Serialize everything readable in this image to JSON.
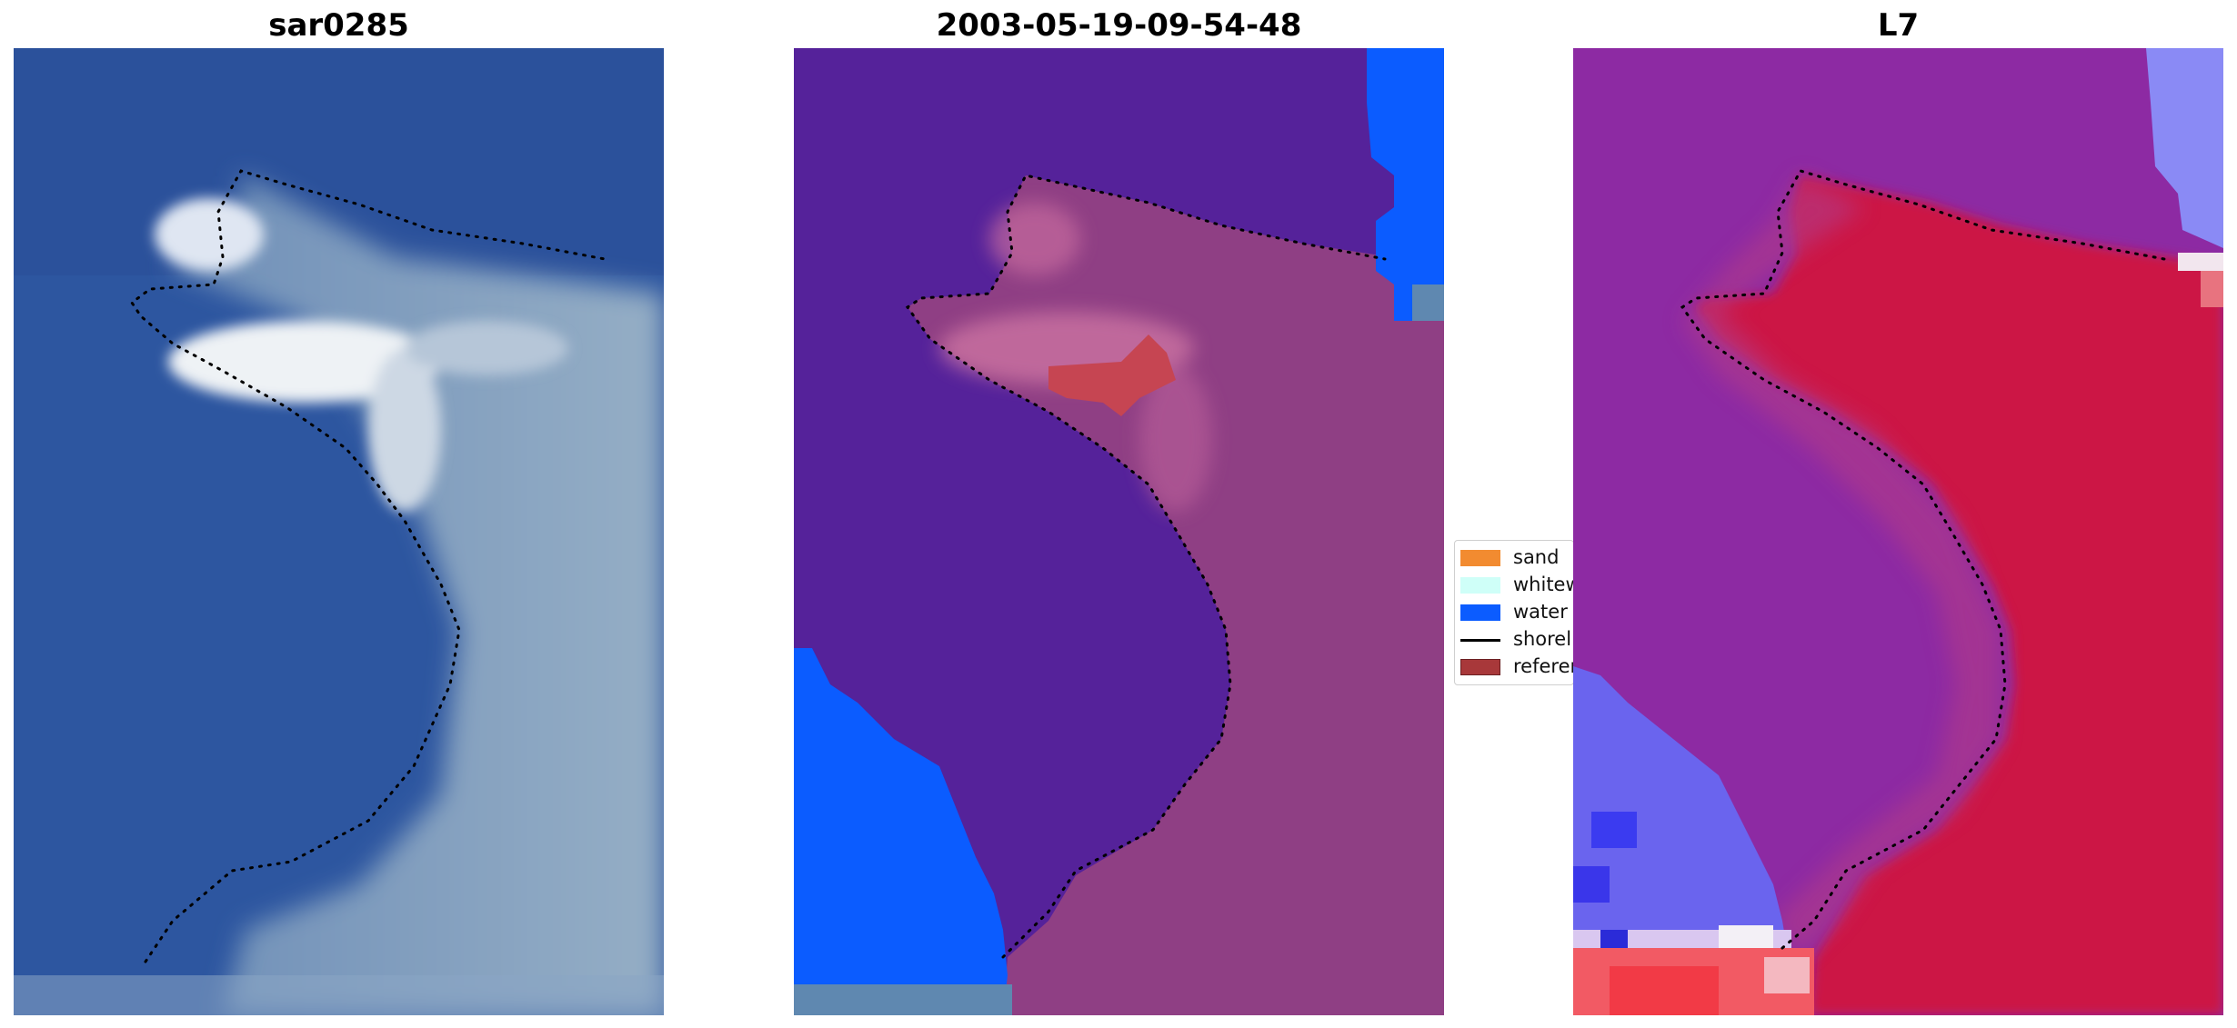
{
  "panels": [
    {
      "title": "sar0285"
    },
    {
      "title": "2003-05-19-09-54-48"
    },
    {
      "title": "L7"
    }
  ],
  "legend": {
    "items": [
      {
        "label": "sand",
        "color": "#f28b30"
      },
      {
        "label": "whitewater",
        "color": "#cffff8"
      },
      {
        "label": "water",
        "color": "#0b5cff"
      },
      {
        "label": "shoreline",
        "color": "#000000"
      },
      {
        "label": "reference shoreline",
        "color": "#a8383a"
      }
    ]
  },
  "colors": {
    "rgb_ocean": "#2c56a0",
    "rgb_land": "#7f9cbb",
    "class_purple": "#55229a",
    "class_land": "#8f3f84",
    "class_water": "#0b5cff",
    "class_sand_patch": "#c64552",
    "index_purple": "#8d2aa3",
    "index_red": "#cc1545",
    "index_blue": "#7272ff"
  }
}
